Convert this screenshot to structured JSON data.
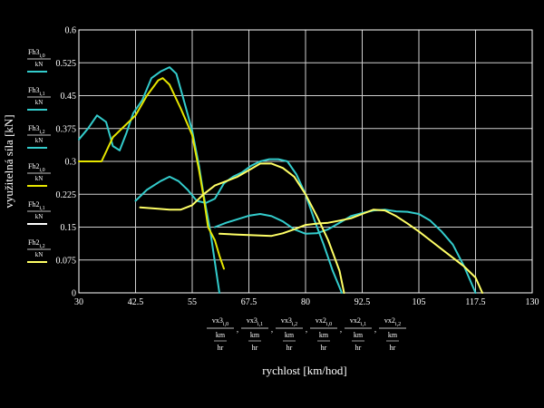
{
  "chart_data": {
    "type": "line",
    "xlabel": "rychlost [km/hod]",
    "ylabel": "využitelná síla [kN]",
    "xlim": [
      30,
      130
    ],
    "ylim": [
      0,
      0.6
    ],
    "x_ticks": [
      30,
      42.5,
      55,
      67.5,
      80,
      92.5,
      105,
      117.5,
      130
    ],
    "y_ticks": [
      0,
      0.075,
      0.15,
      0.225,
      0.3,
      0.375,
      0.45,
      0.525,
      0.6
    ],
    "x_tick_labels": [
      "30",
      "42.5",
      "55",
      "67.5",
      "80",
      "92.5",
      "105",
      "117.5",
      "130"
    ],
    "y_tick_labels": [
      "0",
      "0.075",
      "0.15",
      "0.225",
      "0.3",
      "0.375",
      "0.45",
      "0.525",
      "0.6"
    ],
    "grid": true,
    "x_expressions": [
      {
        "var": "vx3",
        "index": "i,0",
        "den_top": "km",
        "den_bottom": "hr"
      },
      {
        "var": "vx3",
        "index": "i,1",
        "den_top": "km",
        "den_bottom": "hr"
      },
      {
        "var": "vx3",
        "index": "i,2",
        "den_top": "km",
        "den_bottom": "hr"
      },
      {
        "var": "vx2",
        "index": "i,0",
        "den_top": "km",
        "den_bottom": "hr"
      },
      {
        "var": "vx2",
        "index": "i,1",
        "den_top": "km",
        "den_bottom": "hr"
      },
      {
        "var": "vx2",
        "index": "i,2",
        "den_top": "km",
        "den_bottom": "hr"
      }
    ],
    "y_expressions": [
      {
        "var": "Fh3",
        "index": "i,0",
        "den": "kN",
        "color": "#33cccc"
      },
      {
        "var": "Fh3",
        "index": "i,1",
        "den": "kN",
        "color": "#33cccc"
      },
      {
        "var": "Fh3",
        "index": "i,2",
        "den": "kN",
        "color": "#33cccc"
      },
      {
        "var": "Fh2",
        "index": "i,0",
        "den": "kN",
        "color": "#e6e600"
      },
      {
        "var": "Fh2",
        "index": "i,1",
        "den": "kN",
        "color": "#ffffff"
      },
      {
        "var": "Fh2",
        "index": "i,2",
        "den": "kN",
        "color": "#ffff66"
      }
    ],
    "series": [
      {
        "color": "#33cccc",
        "points": [
          [
            30,
            0.35
          ],
          [
            32,
            0.375
          ],
          [
            34,
            0.405
          ],
          [
            36,
            0.39
          ],
          [
            37.5,
            0.335
          ],
          [
            39,
            0.325
          ],
          [
            40.5,
            0.365
          ],
          [
            42,
            0.41
          ],
          [
            44,
            0.44
          ],
          [
            46,
            0.49
          ],
          [
            48,
            0.505
          ],
          [
            50,
            0.515
          ],
          [
            51.5,
            0.5
          ],
          [
            53,
            0.445
          ],
          [
            55,
            0.37
          ],
          [
            56.5,
            0.29
          ],
          [
            57.5,
            0.225
          ],
          [
            59,
            0.14
          ],
          [
            60,
            0.07
          ],
          [
            61,
            0
          ]
        ]
      },
      {
        "color": "#33cccc",
        "points": [
          [
            42.5,
            0.21
          ],
          [
            45,
            0.235
          ],
          [
            48,
            0.255
          ],
          [
            50,
            0.265
          ],
          [
            52,
            0.255
          ],
          [
            54,
            0.235
          ],
          [
            56,
            0.21
          ],
          [
            58,
            0.205
          ],
          [
            60,
            0.215
          ],
          [
            62,
            0.25
          ],
          [
            64,
            0.265
          ],
          [
            66,
            0.275
          ],
          [
            68,
            0.29
          ],
          [
            70,
            0.3
          ],
          [
            72,
            0.305
          ],
          [
            74,
            0.305
          ],
          [
            76,
            0.3
          ],
          [
            78,
            0.27
          ],
          [
            80,
            0.225
          ],
          [
            82,
            0.165
          ],
          [
            84,
            0.11
          ],
          [
            86,
            0.05
          ],
          [
            88,
            0
          ]
        ]
      },
      {
        "color": "#33cccc",
        "points": [
          [
            60,
            0.15
          ],
          [
            62.5,
            0.16
          ],
          [
            65,
            0.168
          ],
          [
            67.5,
            0.176
          ],
          [
            70,
            0.18
          ],
          [
            72.5,
            0.175
          ],
          [
            75,
            0.163
          ],
          [
            77.5,
            0.145
          ],
          [
            80,
            0.135
          ],
          [
            82.5,
            0.136
          ],
          [
            85,
            0.145
          ],
          [
            87.5,
            0.16
          ],
          [
            90,
            0.175
          ],
          [
            92.5,
            0.182
          ],
          [
            95,
            0.188
          ],
          [
            97.5,
            0.19
          ],
          [
            100,
            0.186
          ],
          [
            102.5,
            0.185
          ],
          [
            105,
            0.18
          ],
          [
            107.5,
            0.165
          ],
          [
            110,
            0.14
          ],
          [
            112.5,
            0.11
          ],
          [
            115,
            0.06
          ],
          [
            117.5,
            0
          ]
        ]
      },
      {
        "color": "#e6e600",
        "points": [
          [
            30,
            0.3
          ],
          [
            35,
            0.3
          ],
          [
            37.5,
            0.355
          ],
          [
            40,
            0.38
          ],
          [
            42.5,
            0.405
          ],
          [
            45,
            0.45
          ],
          [
            47.5,
            0.485
          ],
          [
            48.5,
            0.49
          ],
          [
            50,
            0.475
          ],
          [
            52.5,
            0.42
          ],
          [
            55,
            0.36
          ],
          [
            56.5,
            0.28
          ],
          [
            57.5,
            0.22
          ],
          [
            58.5,
            0.15
          ],
          [
            60,
            0.12
          ],
          [
            61,
            0.085
          ],
          [
            62,
            0.055
          ]
        ]
      },
      {
        "color": "#ffff66",
        "points": [
          [
            43.5,
            0.195
          ],
          [
            47.5,
            0.192
          ],
          [
            50,
            0.19
          ],
          [
            52.5,
            0.19
          ],
          [
            55,
            0.2
          ],
          [
            57.5,
            0.225
          ],
          [
            60,
            0.245
          ],
          [
            62.5,
            0.255
          ],
          [
            65,
            0.265
          ],
          [
            67.5,
            0.28
          ],
          [
            70,
            0.295
          ],
          [
            72.5,
            0.295
          ],
          [
            75,
            0.285
          ],
          [
            77.5,
            0.265
          ],
          [
            80,
            0.225
          ],
          [
            82.5,
            0.175
          ],
          [
            85,
            0.12
          ],
          [
            87.5,
            0.05
          ],
          [
            88.5,
            0
          ]
        ]
      },
      {
        "color": "#ffff66",
        "points": [
          [
            61,
            0.135
          ],
          [
            65,
            0.133
          ],
          [
            70,
            0.131
          ],
          [
            72.5,
            0.13
          ],
          [
            75,
            0.136
          ],
          [
            77.5,
            0.145
          ],
          [
            80,
            0.155
          ],
          [
            82.5,
            0.158
          ],
          [
            85,
            0.16
          ],
          [
            87.5,
            0.165
          ],
          [
            90,
            0.17
          ],
          [
            92.5,
            0.18
          ],
          [
            95,
            0.19
          ],
          [
            97.5,
            0.188
          ],
          [
            100,
            0.175
          ],
          [
            102.5,
            0.158
          ],
          [
            105,
            0.14
          ],
          [
            107.5,
            0.12
          ],
          [
            110,
            0.1
          ],
          [
            112.5,
            0.08
          ],
          [
            115,
            0.06
          ],
          [
            117.5,
            0.035
          ],
          [
            119,
            0
          ]
        ]
      }
    ]
  }
}
